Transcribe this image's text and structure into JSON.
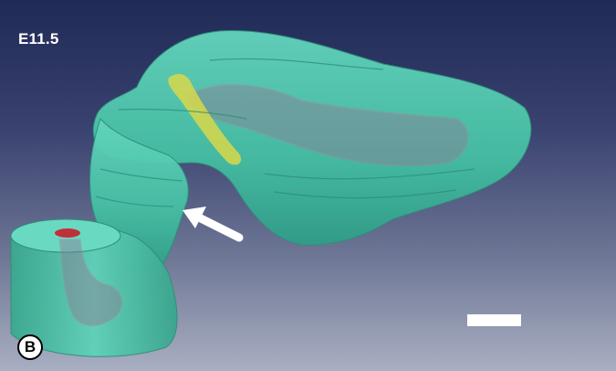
{
  "figure": {
    "stage_label": "E11.5",
    "panel_letter": "B",
    "colors": {
      "background_top": "#1f2a55",
      "background_bottom": "#a9afc2",
      "tissue_surface": "#4fc9ae",
      "inner_structure": "#b07a9a",
      "yellow_structure": "#d8d84a",
      "lumen_red": "#c0303a",
      "arrow": "#ffffff",
      "scale_bar": "#ffffff"
    },
    "icons": {
      "arrow": "arrow-icon",
      "scale": "scale-bar"
    }
  }
}
